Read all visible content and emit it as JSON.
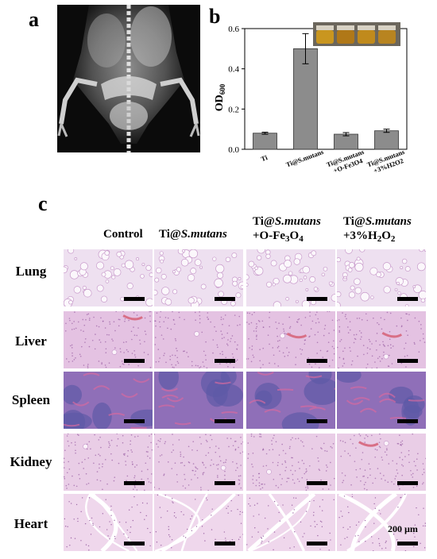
{
  "panels": {
    "a": "a",
    "b": "b",
    "c": "c"
  },
  "xray": {
    "description_icon": "xray-mouse-icon"
  },
  "chart_data": {
    "type": "bar",
    "categories": [
      "Ti",
      "Ti@S.mutans",
      "Ti@S.mutans +O-Fe3O4",
      "Ti@S.mutans +3%H2O2"
    ],
    "values": [
      0.08,
      0.5,
      0.075,
      0.092
    ],
    "errors": [
      0.005,
      0.075,
      0.008,
      0.008
    ],
    "ylabel": "OD600",
    "ylim": [
      0,
      0.6
    ],
    "yticks": [
      "0.0",
      "0.2",
      "0.4",
      "0.6"
    ],
    "bar_color": "#8c8c8c",
    "grid": false
  },
  "columns": [
    {
      "line1": "Control",
      "line2": ""
    },
    {
      "line1": "Ti@S.mutans",
      "line2": ""
    },
    {
      "line1": "Ti@S.mutans",
      "line2": "+O-Fe3O4"
    },
    {
      "line1": "Ti@S.mutans",
      "line2": "+3%H2O2"
    }
  ],
  "rows": [
    "Lung",
    "Liver",
    "Spleen",
    "Kidney",
    "Heart"
  ],
  "scale_label": "200 µm",
  "tissue_colors": {
    "lung": "#eee0f0",
    "liver": "#e4c2e2",
    "spleen": "#8f6fb8",
    "kidney": "#e9cde6",
    "heart": "#efd7ec"
  }
}
